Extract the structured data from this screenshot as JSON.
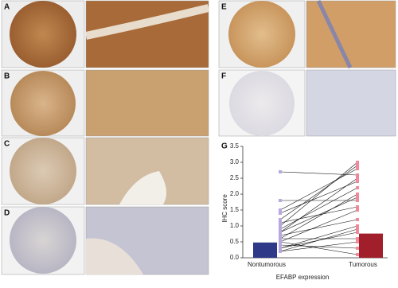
{
  "panels": [
    "A",
    "B",
    "C",
    "D",
    "E",
    "F"
  ],
  "chart_data": {
    "type": "bar",
    "panel_label": "G",
    "y_label": "IHC score",
    "x_label": "EFABP expression",
    "categories": [
      "Nontumorous",
      "Tumorous"
    ],
    "values": [
      0.48,
      0.76
    ],
    "colors": [
      "#2e3a87",
      "#a11f2a"
    ],
    "ylim": [
      0,
      3.5
    ],
    "yticks": [
      {
        "value": 0,
        "label": "0.0"
      },
      0.5,
      {
        "value": 1,
        "label": "1.0"
      },
      1.5,
      {
        "value": 2,
        "label": "2.0"
      },
      2.5,
      {
        "value": 3,
        "label": "3.0"
      },
      3.5
    ],
    "pairs": {
      "nontumorous": [
        0.2,
        0.3,
        0.5,
        0.6,
        0.8,
        1.0,
        1.2,
        1.5,
        1.8,
        2.7,
        0.4,
        0.7,
        0.9,
        0.3,
        1.1,
        0.5,
        0.6,
        0.2,
        1.4,
        0.8
      ],
      "tumorous": [
        0.5,
        1.0,
        1.5,
        2.0,
        2.5,
        3.0,
        2.9,
        2.8,
        1.8,
        2.6,
        0.3,
        1.2,
        2.2,
        0.8,
        1.6,
        0.1,
        0.6,
        0.9,
        2.4,
        1.9
      ],
      "point_colors": [
        "#b8a8e0",
        "#f08a9a"
      ],
      "line_color": "#111"
    }
  }
}
